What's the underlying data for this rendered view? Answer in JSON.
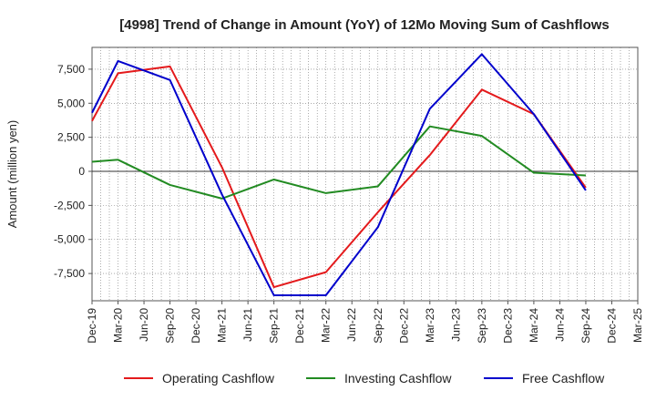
{
  "chart_data": {
    "type": "line",
    "title": "[4998]  Trend of Change in Amount (YoY) of 12Mo Moving Sum of Cashflows",
    "xlabel": "",
    "ylabel": "Amount (million yen)",
    "categories": [
      "Dec-19",
      "Mar-20",
      "Jun-20",
      "Sep-20",
      "Dec-20",
      "Mar-21",
      "Jun-21",
      "Sep-21",
      "Dec-21",
      "Mar-22",
      "Jun-22",
      "Sep-22",
      "Dec-22",
      "Mar-23",
      "Jun-23",
      "Sep-23",
      "Dec-23",
      "Mar-24",
      "Jun-24",
      "Sep-24",
      "Dec-24",
      "Mar-25"
    ],
    "ylim": [
      -9500,
      9100
    ],
    "yticks": [
      7500,
      5000,
      2500,
      0,
      -2500,
      -5000,
      -7500
    ],
    "ytick_labels": [
      "7,500",
      "5,000",
      "2,500",
      "0",
      "-2,500",
      "-5,000",
      "-7,500"
    ],
    "grid": true,
    "legend_position": "bottom",
    "series": [
      {
        "name": "Operating Cashflow",
        "color": "#e41a1c",
        "values": [
          3700,
          7200,
          null,
          7700,
          null,
          300,
          null,
          -8500,
          null,
          -7400,
          null,
          -3000,
          null,
          1200,
          null,
          6000,
          null,
          4200,
          null,
          -1200,
          null,
          null
        ]
      },
      {
        "name": "Investing Cashflow",
        "color": "#228b22",
        "values": [
          700,
          850,
          null,
          -1000,
          null,
          -2000,
          null,
          -600,
          null,
          -1600,
          null,
          -1100,
          null,
          3300,
          null,
          2600,
          null,
          -100,
          null,
          -300,
          null,
          null
        ]
      },
      {
        "name": "Free Cashflow",
        "color": "#0000cc",
        "values": [
          4300,
          8100,
          null,
          6700,
          null,
          -1700,
          null,
          -9100,
          null,
          -9100,
          null,
          -4100,
          null,
          4600,
          null,
          8600,
          null,
          4200,
          null,
          -1400,
          null,
          null
        ]
      }
    ]
  }
}
